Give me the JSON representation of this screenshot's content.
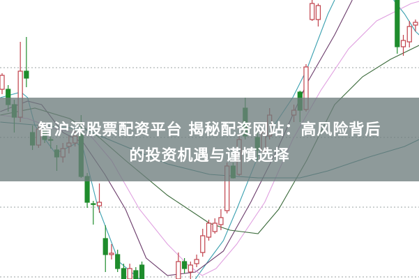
{
  "overlay": {
    "title_line1": "智沪深股票配资平台 揭秘配资网站：高风险背后",
    "title_line2": "的投资机遇与谨慎选择"
  },
  "chart_data": {
    "type": "candlestick",
    "title": "",
    "xlabel": "",
    "ylabel": "",
    "ylim": [
      -0.3,
      39.7
    ],
    "xlim": [
      -0.3,
      68.6
    ],
    "grid": {
      "horizontal": true,
      "style": "dotted",
      "levels": [
        0,
        10,
        20,
        30
      ]
    },
    "colors": {
      "up": "#c0404a",
      "down": "#1e8c2c",
      "grid": "#9aa0a0",
      "overlay": "#6e7d7d"
    },
    "candle_fields": [
      "index",
      "open",
      "close",
      "high",
      "low"
    ],
    "candles": [
      [
        0,
        26.9,
        28.9,
        29.2,
        26.2
      ],
      [
        1,
        26.9,
        24.7,
        27.5,
        23.7
      ],
      [
        2,
        24.7,
        22.9,
        25.4,
        20.7
      ],
      [
        3,
        22.9,
        29.5,
        33.7,
        22.2
      ],
      [
        4,
        29.5,
        28.5,
        34.4,
        27.2
      ],
      [
        5,
        20.7,
        18.9,
        21.7,
        18.2
      ],
      [
        6,
        18.9,
        21.2,
        21.9,
        18.5
      ],
      [
        7,
        20.9,
        19.7,
        21.7,
        19.2
      ],
      [
        8,
        19.7,
        19.6,
        20.2,
        18.4
      ],
      [
        9,
        18.2,
        17.2,
        18.9,
        15.2
      ],
      [
        10,
        17.2,
        18.4,
        19.2,
        16.4
      ],
      [
        11,
        18.7,
        19.2,
        20.2,
        17.7
      ],
      [
        12,
        19.2,
        20.2,
        20.9,
        18.7
      ],
      [
        13,
        20.4,
        14.4,
        23.2,
        14.2
      ],
      [
        14,
        14.4,
        10.7,
        14.9,
        9.9
      ],
      [
        15,
        10.5,
        10.4,
        10.9,
        7.5
      ],
      [
        16,
        10.2,
        10.7,
        13.4,
        9.2
      ],
      [
        17,
        5.5,
        3.2,
        7.4,
        0.7
      ],
      [
        18,
        3.2,
        3.4,
        4.7,
        2.5
      ],
      [
        19,
        3.2,
        1.2,
        3.9,
        0.7
      ],
      [
        20,
        1.2,
        -0.3,
        1.9,
        -0.3
      ],
      [
        21,
        -0.3,
        1.2,
        1.9,
        -0.3
      ],
      [
        22,
        0.9,
        -0.3,
        1.4,
        -0.3
      ],
      [
        23,
        1.7,
        -0.3,
        2.2,
        -0.3
      ],
      [
        29,
        -0.3,
        2.2,
        3.5,
        -0.3
      ],
      [
        30,
        2.2,
        1.2,
        2.7,
        0.5
      ],
      [
        31,
        0.7,
        1.7,
        2.2,
        -0.3
      ],
      [
        32,
        1.9,
        2.5,
        3.2,
        1.4
      ],
      [
        33,
        3.5,
        5.9,
        6.9,
        2.9
      ],
      [
        34,
        5.7,
        7.7,
        8.2,
        5.2
      ],
      [
        35,
        6.5,
        7.7,
        8.4,
        6.2
      ],
      [
        36,
        7.5,
        8.5,
        9.7,
        6.7
      ],
      [
        37,
        9.5,
        15.9,
        16.4,
        9.1
      ],
      [
        38,
        15.9,
        14.2,
        16.4,
        14.1
      ],
      [
        39,
        14.7,
        19.7,
        20.5,
        14.5
      ],
      [
        40,
        24.2,
        20.2,
        25.7,
        19.7
      ],
      [
        42,
        20.0,
        18.2,
        20.7,
        16.7
      ],
      [
        43,
        18.0,
        20.7,
        21.2,
        17.7
      ],
      [
        44,
        20.2,
        23.2,
        24.2,
        19.7
      ],
      [
        48,
        23.2,
        23.9,
        24.7,
        22.2
      ],
      [
        49,
        26.5,
        23.9,
        26.7,
        22.2
      ],
      [
        50,
        24.0,
        30.1,
        30.5,
        23.7
      ],
      [
        51,
        36.9,
        39.2,
        39.7,
        36.7
      ],
      [
        52,
        36.9,
        38.9,
        39.2,
        35.9
      ],
      [
        65,
        39.7,
        33.0,
        39.7,
        32.0
      ],
      [
        66,
        33.0,
        33.9,
        34.7,
        31.7
      ],
      [
        67,
        33.7,
        35.9,
        36.7,
        32.9
      ],
      [
        68,
        36.1,
        36.5,
        36.9,
        35.2
      ]
    ],
    "moving_averages": [
      {
        "color": "#3aa0b0",
        "segments": [
          [
            [
              -0.3,
              25.7
            ],
            [
              3.1,
              26.5
            ],
            [
              4.2,
              25.7
            ],
            [
              5.4,
              21.7
            ],
            [
              8.8,
              17.7
            ],
            [
              12.3,
              19.2
            ],
            [
              13.4,
              18.2
            ],
            [
              15.7,
              10.2
            ],
            [
              19.2,
              2.2
            ],
            [
              22.6,
              -0.3
            ]
          ],
          [
            [
              31.8,
              -0.3
            ],
            [
              34.1,
              2.5
            ],
            [
              36.4,
              5.2
            ],
            [
              38.6,
              9.7
            ],
            [
              43.2,
              19.7
            ],
            [
              47.8,
              25.7
            ],
            [
              50.1,
              29.7
            ],
            [
              53.6,
              37.7
            ],
            [
              54.7,
              39.7
            ]
          ],
          [
            [
              64.4,
              39.7
            ],
            [
              66.2,
              37.7
            ],
            [
              68,
              35.2
            ],
            [
              68.6,
              34.7
            ]
          ]
        ]
      },
      {
        "color": "#6a3a6a",
        "segments": [
          [
            [
              -0.3,
              23.7
            ],
            [
              4.2,
              25.2
            ],
            [
              6.5,
              24.7
            ],
            [
              10,
              20.7
            ],
            [
              13.4,
              19.2
            ],
            [
              16.9,
              14.7
            ],
            [
              20.3,
              9.7
            ],
            [
              23.7,
              2.7
            ],
            [
              27.2,
              0.2
            ],
            [
              31.8,
              0.7
            ],
            [
              36.4,
              3.7
            ],
            [
              40.9,
              10.7
            ],
            [
              45.5,
              18.7
            ],
            [
              50.1,
              27.7
            ],
            [
              54.7,
              34.7
            ],
            [
              57.6,
              39.7
            ]
          ]
        ]
      },
      {
        "color": "#e0a0e0",
        "segments": [
          [
            [
              -0.3,
              23.2
            ],
            [
              4.2,
              22.7
            ],
            [
              8.8,
              21.2
            ],
            [
              14.6,
              20.2
            ],
            [
              18,
              16.7
            ],
            [
              22.6,
              9.7
            ],
            [
              27.2,
              4.7
            ],
            [
              30.6,
              1.7
            ],
            [
              32.9,
              0.2
            ],
            [
              35.2,
              1.2
            ],
            [
              38.6,
              4.7
            ],
            [
              43.2,
              10.7
            ],
            [
              47.8,
              19.7
            ],
            [
              52.4,
              26.7
            ],
            [
              57,
              32.7
            ],
            [
              61.6,
              36.7
            ],
            [
              67.3,
              39.2
            ],
            [
              68.6,
              39.5
            ]
          ]
        ]
      },
      {
        "color": "#3a6a3a",
        "segments": [
          [
            [
              -0.3,
              23.2
            ],
            [
              5.4,
              24.2
            ],
            [
              11.1,
              22.7
            ],
            [
              15.7,
              20.2
            ],
            [
              20.3,
              16.7
            ],
            [
              27.2,
              11.7
            ],
            [
              34.1,
              7.7
            ],
            [
              37.5,
              6.7
            ],
            [
              42.1,
              6.2
            ],
            [
              45.5,
              9.7
            ],
            [
              50.1,
              16.7
            ],
            [
              54.7,
              24.7
            ],
            [
              59.3,
              28.7
            ],
            [
              63.9,
              31.2
            ],
            [
              68.6,
              33.2
            ]
          ]
        ]
      },
      {
        "color": "#2a7a7a",
        "segments": [
          [
            [
              -0.3,
              22.2
            ],
            [
              6.5,
              21.7
            ],
            [
              13.4,
              21.2
            ],
            [
              20.3,
              18.7
            ],
            [
              27.2,
              16.2
            ],
            [
              34.1,
              14.7
            ],
            [
              42.1,
              14.2
            ],
            [
              49,
              14.2
            ],
            [
              53.6,
              15.2
            ],
            [
              60.4,
              17.2
            ],
            [
              66.2,
              18.7
            ],
            [
              68.6,
              19.7
            ]
          ]
        ]
      }
    ]
  }
}
